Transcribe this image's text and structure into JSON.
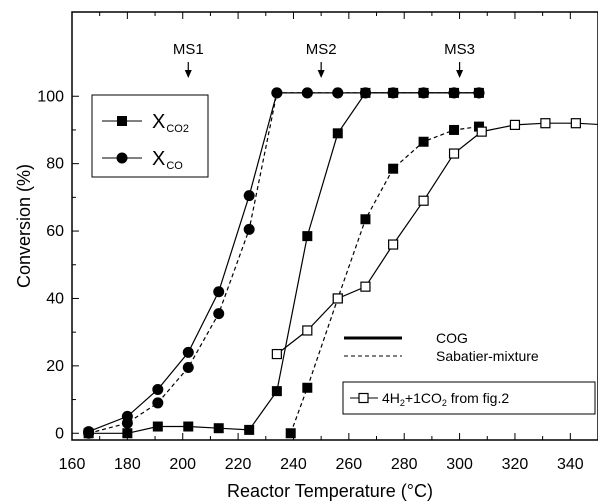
{
  "chart_data": {
    "type": "line",
    "xlabel": "Reactor Temperature (°C)",
    "ylabel": "Conversion (%)",
    "xlim": [
      160,
      350
    ],
    "ylim": [
      -2,
      125
    ],
    "x_ticks": [
      "160",
      "180",
      "200",
      "220",
      "240",
      "260",
      "280",
      "300",
      "320",
      "340"
    ],
    "y_ticks": [
      "0",
      "20",
      "40",
      "60",
      "80",
      "100"
    ],
    "grid": false,
    "annotations": [
      {
        "label": "MS1",
        "x": 202
      },
      {
        "label": "MS2",
        "x": 250
      },
      {
        "label": "MS3",
        "x": 300
      }
    ],
    "legend_markers": {
      "co2": {
        "label": "X",
        "sub": "CO2"
      },
      "co": {
        "label": "X",
        "sub": "CO"
      }
    },
    "legend_lines": {
      "cog": "COG",
      "sabatier": "Sabatier-mixture"
    },
    "legend_ref": {
      "pre": "4H",
      "sub1": "2",
      "mid": "+1CO",
      "sub2": "2",
      "post": " from fig.2"
    },
    "series": [
      {
        "name": "X CO2 COG",
        "marker": "square-filled",
        "line": "solid",
        "x": [
          166,
          180,
          191,
          202,
          213,
          224,
          234,
          245,
          256,
          266,
          276,
          287,
          298,
          307
        ],
        "y": [
          0,
          0,
          2,
          2,
          1.5,
          1,
          12.5,
          58.5,
          89,
          101,
          101,
          101,
          101,
          101
        ]
      },
      {
        "name": "X CO2 Sabatier",
        "marker": "square-filled",
        "line": "dashed",
        "x": [
          239,
          245,
          256,
          266,
          276,
          287,
          298,
          307
        ],
        "y": [
          0,
          13.5,
          40,
          63.5,
          78.5,
          86.5,
          90,
          91
        ]
      },
      {
        "name": "X CO COG",
        "marker": "circle-filled",
        "line": "solid",
        "x": [
          166,
          180,
          191,
          202,
          213,
          224,
          234,
          245,
          256,
          266,
          276,
          287,
          298,
          307
        ],
        "y": [
          0.5,
          5,
          13,
          24,
          42,
          70.5,
          101,
          101,
          101,
          101,
          101,
          101,
          101,
          101
        ]
      },
      {
        "name": "X CO Sabatier",
        "marker": "circle-filled",
        "line": "dashed",
        "x": [
          166,
          180,
          191,
          202,
          213,
          224,
          234,
          245,
          256,
          266,
          276,
          287,
          298,
          307
        ],
        "y": [
          0,
          3,
          9,
          19.5,
          35.5,
          60.5,
          101,
          101,
          101,
          101,
          101,
          101,
          101,
          101
        ]
      },
      {
        "name": "4H2+1CO2 from fig.2",
        "marker": "square-open",
        "line": "solid",
        "x": [
          234,
          245,
          256,
          266,
          276,
          287,
          298,
          308,
          320,
          331,
          342,
          353
        ],
        "y": [
          23.5,
          30.5,
          40,
          43.5,
          56,
          69,
          83,
          89.5,
          91.5,
          92,
          92,
          91.5
        ]
      }
    ]
  }
}
